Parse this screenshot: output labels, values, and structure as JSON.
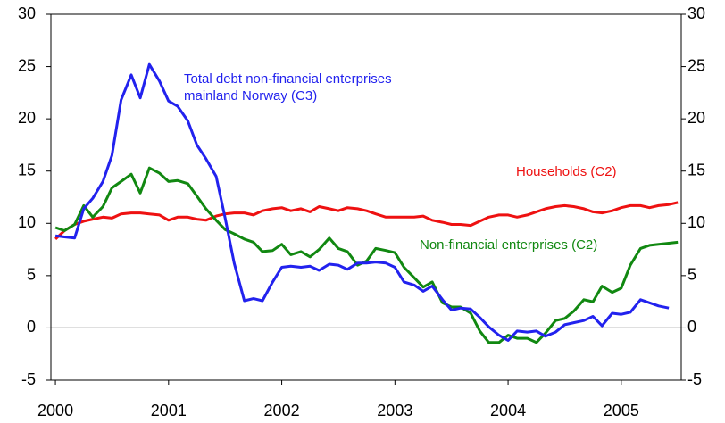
{
  "chart_data": {
    "type": "line",
    "x": [
      2000,
      2000.08,
      2000.17,
      2000.25,
      2000.33,
      2000.42,
      2000.5,
      2000.58,
      2000.67,
      2000.75,
      2000.83,
      2000.92,
      2001,
      2001.08,
      2001.17,
      2001.25,
      2001.33,
      2001.42,
      2001.5,
      2001.58,
      2001.67,
      2001.75,
      2001.83,
      2001.92,
      2002,
      2002.08,
      2002.17,
      2002.25,
      2002.33,
      2002.42,
      2002.5,
      2002.58,
      2002.67,
      2002.75,
      2002.83,
      2002.92,
      2003,
      2003.08,
      2003.17,
      2003.25,
      2003.33,
      2003.42,
      2003.5,
      2003.58,
      2003.67,
      2003.75,
      2003.83,
      2003.92,
      2004,
      2004.08,
      2004.17,
      2004.25,
      2004.33,
      2004.42,
      2004.5,
      2004.58,
      2004.67,
      2004.75,
      2004.83,
      2004.92,
      2005,
      2005.08,
      2005.17,
      2005.25,
      2005.33,
      2005.42,
      2005.5
    ],
    "series": [
      {
        "name": "Households (C2)",
        "color": "#ee1111",
        "values": [
          8.5,
          9.3,
          9.9,
          10.2,
          10.4,
          10.6,
          10.5,
          10.9,
          11.0,
          11.0,
          10.9,
          10.8,
          10.3,
          10.6,
          10.6,
          10.4,
          10.3,
          10.7,
          10.9,
          11.0,
          11.0,
          10.8,
          11.2,
          11.4,
          11.5,
          11.2,
          11.4,
          11.1,
          11.6,
          11.4,
          11.2,
          11.5,
          11.4,
          11.2,
          10.9,
          10.6,
          10.6,
          10.6,
          10.6,
          10.7,
          10.3,
          10.1,
          9.9,
          9.9,
          9.8,
          10.2,
          10.6,
          10.8,
          10.8,
          10.6,
          10.8,
          11.1,
          11.4,
          11.6,
          11.7,
          11.6,
          11.4,
          11.1,
          11.0,
          11.2,
          11.5,
          11.7,
          11.7,
          11.5,
          11.7,
          11.8,
          12.0
        ]
      },
      {
        "name": "Non-financial enterprises (C2)",
        "color": "#118811",
        "values": [
          9.6,
          9.3,
          9.9,
          11.7,
          10.6,
          11.6,
          13.4,
          14.0,
          14.7,
          12.9,
          15.3,
          14.8,
          14.0,
          14.1,
          13.8,
          12.6,
          11.4,
          10.3,
          9.4,
          9.0,
          8.5,
          8.2,
          7.3,
          7.4,
          8.0,
          7.0,
          7.3,
          6.8,
          7.5,
          8.6,
          7.6,
          7.3,
          6.0,
          6.4,
          7.6,
          7.4,
          7.2,
          5.8,
          4.8,
          3.9,
          4.4,
          2.4,
          2.0,
          2.0,
          1.4,
          -0.3,
          -1.4,
          -1.4,
          -0.7,
          -1.0,
          -1.0,
          -1.4,
          -0.5,
          0.7,
          0.9,
          1.6,
          2.7,
          2.5,
          4.0,
          3.4,
          3.8,
          6.0,
          7.6,
          7.9,
          8.0,
          8.1,
          8.2
        ]
      },
      {
        "name": [
          "Total debt non-financial enterprises",
          "mainland Norway (C3)"
        ],
        "color": "#2222ee",
        "values": [
          8.8,
          8.7,
          8.6,
          11.4,
          12.4,
          14.0,
          16.5,
          21.8,
          24.2,
          22.0,
          25.2,
          23.6,
          21.7,
          21.2,
          19.8,
          17.5,
          16.2,
          14.5,
          10.5,
          6.2,
          2.6,
          2.8,
          2.6,
          4.4,
          5.8,
          5.9,
          5.8,
          5.9,
          5.5,
          6.1,
          6.0,
          5.6,
          6.2,
          6.2,
          6.3,
          6.2,
          5.8,
          4.4,
          4.1,
          3.5,
          4.0,
          2.7,
          1.7,
          1.9,
          1.8,
          1.0,
          0.1,
          -0.7,
          -1.2,
          -0.3,
          -0.4,
          -0.3,
          -0.8,
          -0.4,
          0.3,
          0.5,
          0.7,
          1.1,
          0.2,
          1.4,
          1.3,
          1.5,
          2.7,
          2.4,
          2.1,
          1.9,
          null
        ]
      }
    ],
    "xlim": [
      1999.96,
      2005.53
    ],
    "xticks": [
      2000,
      2001,
      2002,
      2003,
      2004,
      2005
    ],
    "ylim": [
      -5,
      30
    ],
    "yticks": [
      -5,
      0,
      5,
      10,
      15,
      20,
      25,
      30
    ],
    "y2lim": [
      -5,
      30
    ],
    "y2ticks": [
      -5,
      0,
      5,
      10,
      15,
      20,
      25,
      30
    ],
    "legend": "inline",
    "grid": false
  }
}
